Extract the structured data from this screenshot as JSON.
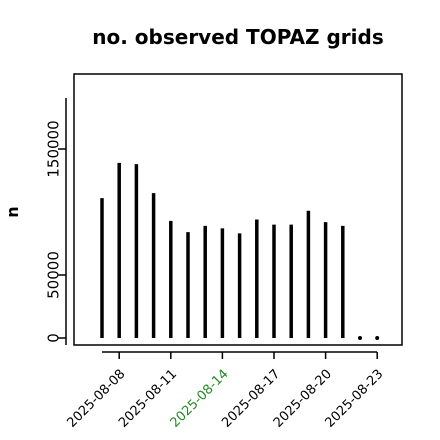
{
  "chart_data": {
    "type": "bar",
    "title": "no. observed TOPAZ grids",
    "ylabel": "n",
    "xlabel": "",
    "x": [
      "2025-08-07",
      "2025-08-08",
      "2025-08-09",
      "2025-08-10",
      "2025-08-11",
      "2025-08-12",
      "2025-08-13",
      "2025-08-14",
      "2025-08-15",
      "2025-08-16",
      "2025-08-17",
      "2025-08-18",
      "2025-08-19",
      "2025-08-20",
      "2025-08-21",
      "2025-08-22",
      "2025-08-23"
    ],
    "values": [
      111000,
      139000,
      138000,
      115000,
      93000,
      84000,
      89000,
      87000,
      83000,
      94000,
      90000,
      90000,
      101000,
      92000,
      89000,
      0,
      0
    ],
    "xticks": [
      {
        "label": "2025-08-08",
        "color": "#000000"
      },
      {
        "label": "2025-08-11",
        "color": "#000000"
      },
      {
        "label": "2025-08-14",
        "color": "#228B22"
      },
      {
        "label": "2025-08-17",
        "color": "#000000"
      },
      {
        "label": "2025-08-20",
        "color": "#000000"
      },
      {
        "label": "2025-08-23",
        "color": "#000000"
      }
    ],
    "yticks": [
      0,
      50000,
      150000
    ],
    "ylim": [
      0,
      200000
    ],
    "grid": false,
    "bar_color": "#000000",
    "zero_marker_color": "#000000",
    "highlight_color": "#228B22"
  }
}
